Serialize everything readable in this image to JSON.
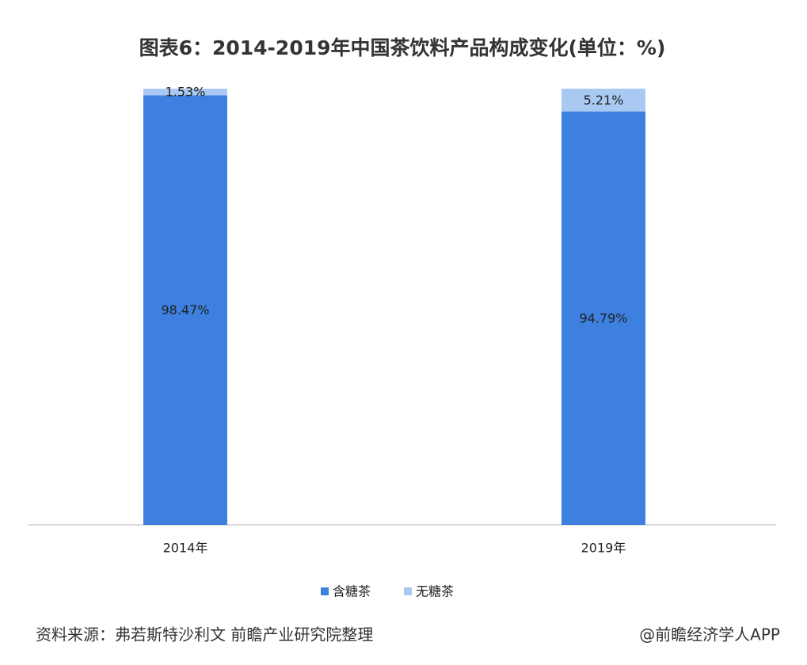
{
  "chart_data": {
    "type": "bar",
    "stacked": true,
    "title": "图表6：2014-2019年中国茶饮料产品构成变化(单位：%)",
    "categories": [
      "2014年",
      "2019年"
    ],
    "series": [
      {
        "name": "含糖茶",
        "color": "#3d80e0",
        "values": [
          98.47,
          94.79
        ],
        "value_labels": [
          "98.47%",
          "94.79%"
        ]
      },
      {
        "name": "无糖茶",
        "color": "#a9c9f2",
        "values": [
          1.53,
          5.21
        ],
        "value_labels": [
          "1.53%",
          "5.21%"
        ]
      }
    ],
    "ylim": [
      0,
      100
    ],
    "source": "资料来源：弗若斯特沙利文 前瞻产业研究院整理",
    "credit": "@前瞻经济学人APP"
  }
}
